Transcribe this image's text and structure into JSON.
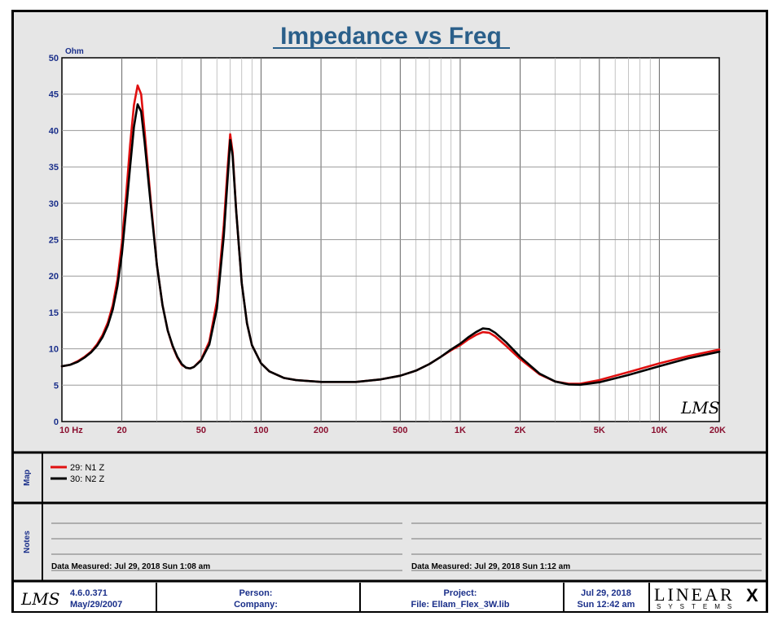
{
  "chart_data": {
    "type": "line",
    "title": "Impedance vs Freq",
    "ylabel": "Ohm",
    "xscale": "log",
    "xlim": [
      10,
      20000
    ],
    "ylim": [
      0,
      50
    ],
    "y_ticks": [
      0,
      5,
      10,
      15,
      20,
      25,
      30,
      35,
      40,
      45,
      50
    ],
    "x_tick_labels": [
      {
        "v": 10,
        "label": "10  Hz"
      },
      {
        "v": 20,
        "label": "20"
      },
      {
        "v": 50,
        "label": "50"
      },
      {
        "v": 100,
        "label": "100"
      },
      {
        "v": 200,
        "label": "200"
      },
      {
        "v": 500,
        "label": "500"
      },
      {
        "v": 1000,
        "label": "1K"
      },
      {
        "v": 2000,
        "label": "2K"
      },
      {
        "v": 5000,
        "label": "5K"
      },
      {
        "v": 10000,
        "label": "10K"
      },
      {
        "v": 20000,
        "label": "20K"
      }
    ],
    "grid": true,
    "series": [
      {
        "name": "29: N1 Z",
        "color": "#e01010",
        "points": [
          [
            10,
            7.6
          ],
          [
            11,
            7.8
          ],
          [
            12,
            8.3
          ],
          [
            13,
            8.9
          ],
          [
            14,
            9.6
          ],
          [
            15,
            10.6
          ],
          [
            16,
            11.9
          ],
          [
            17,
            13.6
          ],
          [
            18,
            16
          ],
          [
            19,
            19.5
          ],
          [
            20,
            24.5
          ],
          [
            21,
            31
          ],
          [
            22,
            38
          ],
          [
            23,
            43.5
          ],
          [
            24,
            46.2
          ],
          [
            25,
            45
          ],
          [
            26,
            40
          ],
          [
            28,
            30
          ],
          [
            30,
            21.5
          ],
          [
            32,
            16
          ],
          [
            34,
            12.5
          ],
          [
            36,
            10.3
          ],
          [
            38,
            8.8
          ],
          [
            40,
            7.8
          ],
          [
            42,
            7.4
          ],
          [
            44,
            7.3
          ],
          [
            46,
            7.5
          ],
          [
            50,
            8.5
          ],
          [
            55,
            11
          ],
          [
            60,
            16.5
          ],
          [
            65,
            27
          ],
          [
            68,
            35
          ],
          [
            70,
            39.5
          ],
          [
            72,
            37
          ],
          [
            75,
            29
          ],
          [
            80,
            19
          ],
          [
            85,
            13.5
          ],
          [
            90,
            10.5
          ],
          [
            100,
            8
          ],
          [
            110,
            6.9
          ],
          [
            130,
            6
          ],
          [
            150,
            5.7
          ],
          [
            200,
            5.45
          ],
          [
            300,
            5.45
          ],
          [
            400,
            5.8
          ],
          [
            500,
            6.3
          ],
          [
            600,
            7
          ],
          [
            700,
            7.9
          ],
          [
            800,
            8.9
          ],
          [
            900,
            9.8
          ],
          [
            1000,
            10.5
          ],
          [
            1100,
            11.3
          ],
          [
            1200,
            11.9
          ],
          [
            1300,
            12.3
          ],
          [
            1400,
            12.2
          ],
          [
            1500,
            11.7
          ],
          [
            1700,
            10.4
          ],
          [
            2000,
            8.6
          ],
          [
            2500,
            6.5
          ],
          [
            3000,
            5.5
          ],
          [
            3500,
            5.2
          ],
          [
            4000,
            5.2
          ],
          [
            5000,
            5.7
          ],
          [
            7000,
            6.8
          ],
          [
            10000,
            8
          ],
          [
            14000,
            9
          ],
          [
            20000,
            9.9
          ]
        ]
      },
      {
        "name": "30: N2 Z",
        "color": "#000000",
        "points": [
          [
            10,
            7.6
          ],
          [
            11,
            7.8
          ],
          [
            12,
            8.2
          ],
          [
            13,
            8.8
          ],
          [
            14,
            9.5
          ],
          [
            15,
            10.4
          ],
          [
            16,
            11.6
          ],
          [
            17,
            13.2
          ],
          [
            18,
            15.4
          ],
          [
            19,
            18.6
          ],
          [
            20,
            23
          ],
          [
            21,
            29
          ],
          [
            22,
            35
          ],
          [
            23,
            40.5
          ],
          [
            24,
            43.6
          ],
          [
            25,
            42.6
          ],
          [
            26,
            38.5
          ],
          [
            28,
            29.5
          ],
          [
            30,
            21.5
          ],
          [
            32,
            16
          ],
          [
            34,
            12.5
          ],
          [
            36,
            10.4
          ],
          [
            38,
            8.9
          ],
          [
            40,
            7.9
          ],
          [
            42,
            7.4
          ],
          [
            44,
            7.3
          ],
          [
            46,
            7.5
          ],
          [
            50,
            8.4
          ],
          [
            55,
            10.6
          ],
          [
            60,
            15.5
          ],
          [
            65,
            25.5
          ],
          [
            68,
            33.5
          ],
          [
            70,
            38.7
          ],
          [
            72,
            36.5
          ],
          [
            75,
            29
          ],
          [
            80,
            19
          ],
          [
            85,
            13.5
          ],
          [
            90,
            10.5
          ],
          [
            100,
            8
          ],
          [
            110,
            6.9
          ],
          [
            130,
            6
          ],
          [
            150,
            5.7
          ],
          [
            200,
            5.45
          ],
          [
            300,
            5.45
          ],
          [
            400,
            5.8
          ],
          [
            500,
            6.3
          ],
          [
            600,
            7
          ],
          [
            700,
            7.9
          ],
          [
            800,
            8.9
          ],
          [
            900,
            9.9
          ],
          [
            1000,
            10.7
          ],
          [
            1100,
            11.6
          ],
          [
            1200,
            12.3
          ],
          [
            1300,
            12.8
          ],
          [
            1400,
            12.7
          ],
          [
            1500,
            12.2
          ],
          [
            1700,
            10.9
          ],
          [
            2000,
            8.9
          ],
          [
            2500,
            6.6
          ],
          [
            3000,
            5.5
          ],
          [
            3500,
            5.1
          ],
          [
            4000,
            5.05
          ],
          [
            5000,
            5.4
          ],
          [
            7000,
            6.4
          ],
          [
            10000,
            7.6
          ],
          [
            14000,
            8.7
          ],
          [
            20000,
            9.6
          ]
        ]
      }
    ]
  },
  "map_label": "Map",
  "notes_label": "Notes",
  "notes": {
    "left_measured": "Data Measured:  Jul 29, 2018  Sun  1:08 am",
    "right_measured": "Data Measured:  Jul 29, 2018  Sun  1:12 am"
  },
  "watermark": "LMS",
  "footer": {
    "logo": "LMS",
    "version": "4.6.0.371",
    "version_date": "May/29/2007",
    "person_label": "Person:",
    "company_label": "Company:",
    "project_label": "Project:",
    "file_label": "File: Ellam_Flex_3W.lib",
    "date": "Jul 29, 2018",
    "time": "Sun 12:42 am",
    "brand": "LINEAR",
    "brand_x": "X",
    "brand_sub": "SYSTEMS"
  }
}
